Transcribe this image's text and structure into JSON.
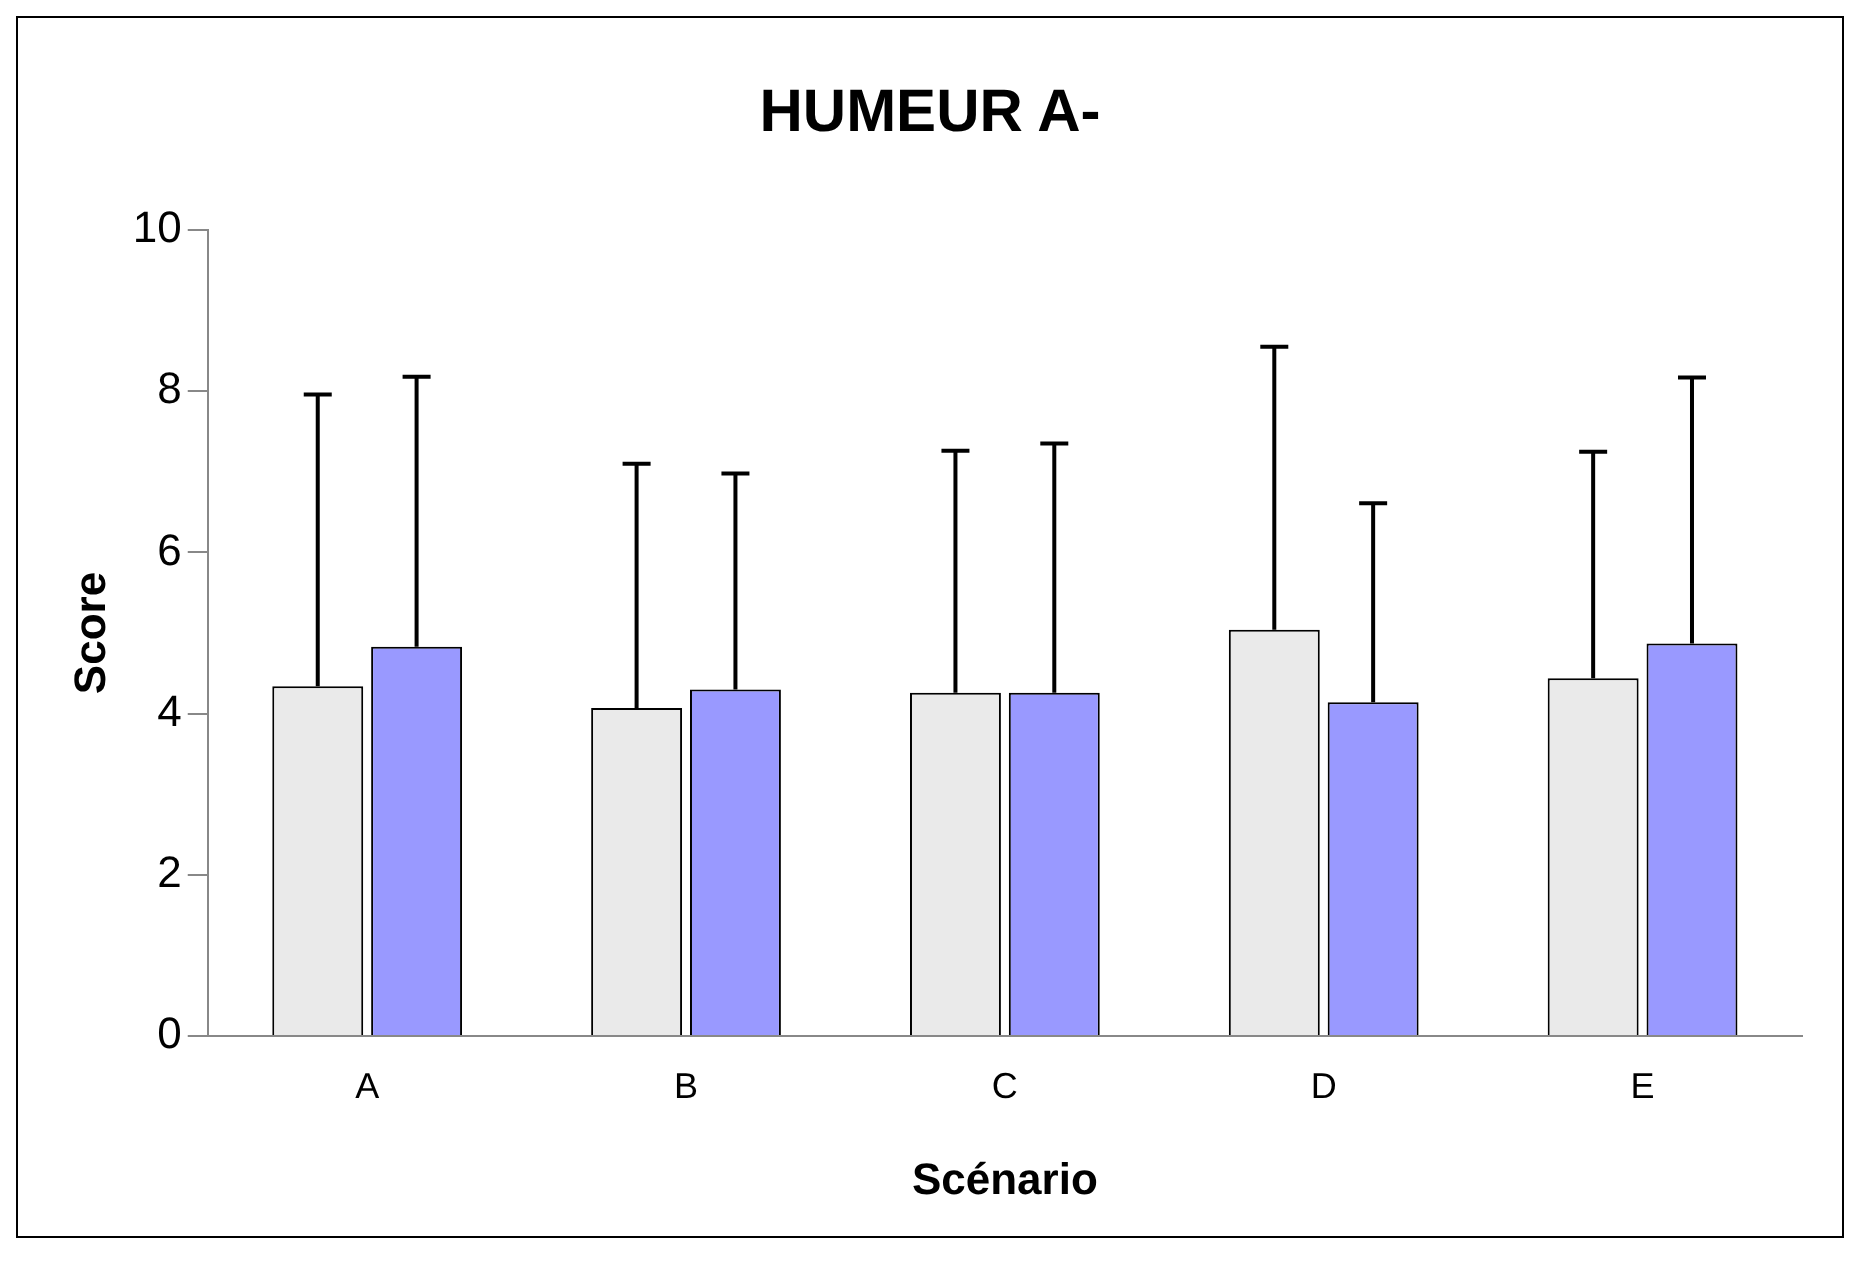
{
  "chart_data": {
    "type": "bar",
    "title": "HUMEUR A-",
    "xlabel": "Scénario",
    "ylabel": "Score",
    "categories": [
      "A",
      "B",
      "C",
      "D",
      "E"
    ],
    "series": [
      {
        "color": "#eaeaea",
        "values": [
          4.34,
          4.07,
          4.26,
          5.04,
          4.44
        ],
        "errors": [
          [
            4.34,
            7.96
          ],
          [
            4.07,
            7.1
          ],
          [
            4.26,
            7.26
          ],
          [
            5.04,
            8.55
          ],
          [
            4.44,
            7.25
          ]
        ]
      },
      {
        "color": "#9999ff",
        "values": [
          4.83,
          4.3,
          4.26,
          4.14,
          4.87
        ],
        "errors": [
          [
            4.83,
            8.18
          ],
          [
            4.3,
            6.98
          ],
          [
            4.26,
            7.35
          ],
          [
            4.14,
            6.61
          ],
          [
            4.87,
            8.17
          ]
        ]
      }
    ],
    "ylim": [
      0,
      10
    ],
    "yticks": [
      0,
      2,
      4,
      6,
      8,
      10
    ],
    "grid": false,
    "legend": false
  }
}
